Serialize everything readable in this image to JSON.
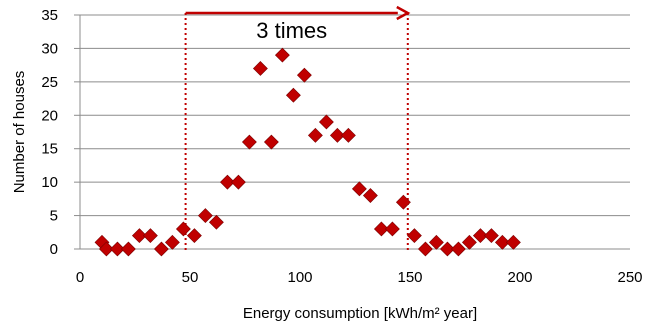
{
  "chart_data": {
    "type": "scatter",
    "xlabel": "Energy consumption [kWh/m² year]",
    "ylabel": "Number of houses",
    "xlim": [
      0,
      250
    ],
    "ylim": [
      0,
      35
    ],
    "xticks": [
      0,
      50,
      100,
      150,
      200,
      250
    ],
    "yticks": [
      0,
      5,
      10,
      15,
      20,
      25,
      30,
      35
    ],
    "grid": "horizontal",
    "marker": "diamond",
    "marker_color": "#c00000",
    "points": [
      {
        "x": 10,
        "y": 1
      },
      {
        "x": 12,
        "y": 0
      },
      {
        "x": 17,
        "y": 0
      },
      {
        "x": 22,
        "y": 0
      },
      {
        "x": 27,
        "y": 2
      },
      {
        "x": 32,
        "y": 2
      },
      {
        "x": 37,
        "y": 0
      },
      {
        "x": 42,
        "y": 1
      },
      {
        "x": 47,
        "y": 3
      },
      {
        "x": 52,
        "y": 2
      },
      {
        "x": 57,
        "y": 5
      },
      {
        "x": 62,
        "y": 4
      },
      {
        "x": 67,
        "y": 10
      },
      {
        "x": 72,
        "y": 10
      },
      {
        "x": 77,
        "y": 16
      },
      {
        "x": 82,
        "y": 27
      },
      {
        "x": 87,
        "y": 16
      },
      {
        "x": 92,
        "y": 29
      },
      {
        "x": 97,
        "y": 23
      },
      {
        "x": 102,
        "y": 26
      },
      {
        "x": 107,
        "y": 17
      },
      {
        "x": 112,
        "y": 19
      },
      {
        "x": 117,
        "y": 17
      },
      {
        "x": 122,
        "y": 17
      },
      {
        "x": 127,
        "y": 9
      },
      {
        "x": 132,
        "y": 8
      },
      {
        "x": 137,
        "y": 3
      },
      {
        "x": 142,
        "y": 3
      },
      {
        "x": 147,
        "y": 7
      },
      {
        "x": 152,
        "y": 2
      },
      {
        "x": 157,
        "y": 0
      },
      {
        "x": 162,
        "y": 1
      },
      {
        "x": 167,
        "y": 0
      },
      {
        "x": 172,
        "y": 0
      },
      {
        "x": 177,
        "y": 1
      },
      {
        "x": 182,
        "y": 2
      },
      {
        "x": 187,
        "y": 2
      },
      {
        "x": 192,
        "y": 1
      },
      {
        "x": 197,
        "y": 1
      }
    ],
    "annotations": [
      {
        "type": "range-arrow",
        "text": "3 times",
        "x_start": 48,
        "x_end": 149,
        "color": "#c00000"
      }
    ]
  }
}
